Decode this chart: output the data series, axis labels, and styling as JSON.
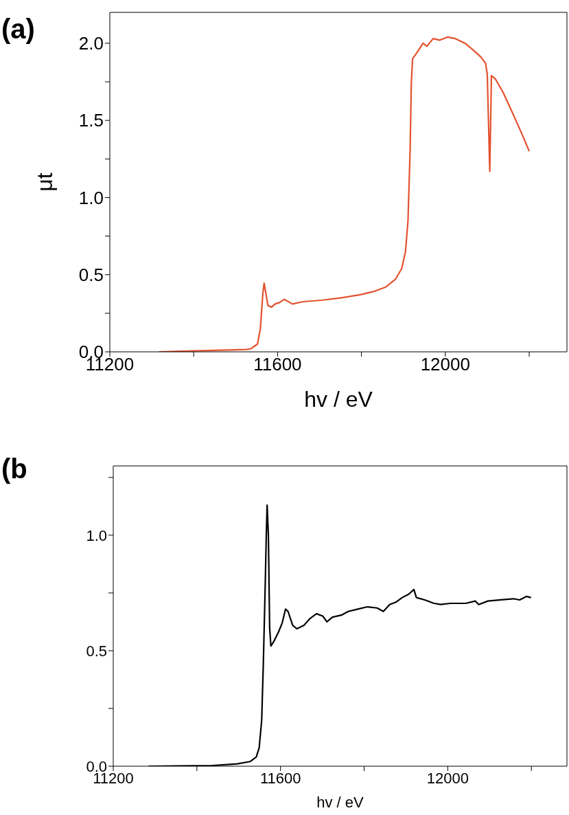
{
  "chart_data": [
    {
      "type": "line",
      "title": "(a)",
      "xlabel": "hv / eV",
      "ylabel": "μt",
      "color": "#e4512e",
      "xlim": [
        11200,
        12290
      ],
      "xticks": [
        11200,
        {
          "value": 11400,
          "label": null
        },
        11600,
        {
          "value": 11800,
          "label": null
        },
        12000,
        {
          "value": 12200,
          "label": null
        }
      ],
      "ylim": [
        0,
        2.2
      ],
      "yticks": [
        {
          "value": 0,
          "label": "0.0"
        },
        {
          "value": 0.25,
          "label": null
        },
        {
          "value": 0.5,
          "label": "0.5"
        },
        {
          "value": 0.75,
          "label": null
        },
        {
          "value": 1,
          "label": "1.0"
        },
        {
          "value": 1.25,
          "label": null
        },
        {
          "value": 1.5,
          "label": "1.5"
        },
        {
          "value": 1.75,
          "label": null
        },
        {
          "value": 2,
          "label": "2.0"
        }
      ],
      "x": [
        11317,
        11525,
        11536,
        11552,
        11559,
        11565,
        11568,
        11572,
        11577,
        11586,
        11594,
        11605,
        11616,
        11623,
        11635,
        11661,
        11707,
        11752,
        11797,
        11828,
        11858,
        11881,
        11896,
        11905,
        11911,
        11916,
        11919,
        11922,
        11930,
        11947,
        11956,
        11971,
        11986,
        12005,
        12024,
        12047,
        12069,
        12085,
        12096,
        12100,
        12106,
        12110,
        12119,
        12138,
        12160,
        12183,
        12200
      ],
      "values": [
        0,
        0.015,
        0.02,
        0.05,
        0.15,
        0.38,
        0.445,
        0.38,
        0.3,
        0.29,
        0.31,
        0.32,
        0.34,
        0.33,
        0.31,
        0.325,
        0.335,
        0.35,
        0.37,
        0.39,
        0.42,
        0.47,
        0.54,
        0.65,
        0.85,
        1.3,
        1.75,
        1.9,
        1.93,
        2.0,
        1.98,
        2.03,
        2.02,
        2.04,
        2.03,
        2.0,
        1.95,
        1.91,
        1.87,
        1.8,
        1.17,
        1.79,
        1.77,
        1.68,
        1.55,
        1.41,
        1.3
      ]
    },
    {
      "type": "line",
      "title": "(b",
      "xlabel": "hv / eV",
      "color": "#000000",
      "xlim": [
        11200,
        12285
      ],
      "xticks": [
        11200,
        {
          "value": 11400,
          "label": null
        },
        11600,
        {
          "value": 11800,
          "label": null
        },
        12000,
        {
          "value": 12200,
          "label": null
        }
      ],
      "ylim": [
        0,
        1.3
      ],
      "yticks": [
        {
          "value": 0,
          "label": "0.0"
        },
        {
          "value": 0.25,
          "label": null
        },
        {
          "value": 0.5,
          "label": "0.5"
        },
        {
          "value": 0.75,
          "label": null
        },
        {
          "value": 1,
          "label": "1.0"
        },
        {
          "value": 1.25,
          "label": null
        }
      ],
      "x": [
        11284,
        11436,
        11496,
        11527,
        11542,
        11549,
        11555,
        11559,
        11563,
        11566,
        11568,
        11571,
        11574,
        11577,
        11584,
        11595,
        11604,
        11612,
        11618,
        11629,
        11639,
        11656,
        11671,
        11686,
        11701,
        11711,
        11724,
        11747,
        11762,
        11785,
        11808,
        11831,
        11846,
        11861,
        11876,
        11891,
        11907,
        11919,
        11925,
        11945,
        11967,
        11983,
        12006,
        12043,
        12066,
        12074,
        12096,
        12127,
        12157,
        12172,
        12188,
        12199
      ],
      "values": [
        0,
        0.003,
        0.01,
        0.02,
        0.04,
        0.08,
        0.2,
        0.45,
        0.75,
        1.0,
        1.13,
        1.0,
        0.6,
        0.52,
        0.54,
        0.58,
        0.62,
        0.68,
        0.67,
        0.61,
        0.595,
        0.61,
        0.64,
        0.66,
        0.65,
        0.625,
        0.645,
        0.655,
        0.67,
        0.68,
        0.69,
        0.685,
        0.67,
        0.7,
        0.71,
        0.73,
        0.745,
        0.765,
        0.73,
        0.72,
        0.705,
        0.7,
        0.705,
        0.705,
        0.715,
        0.7,
        0.715,
        0.72,
        0.725,
        0.72,
        0.735,
        0.73
      ]
    }
  ]
}
